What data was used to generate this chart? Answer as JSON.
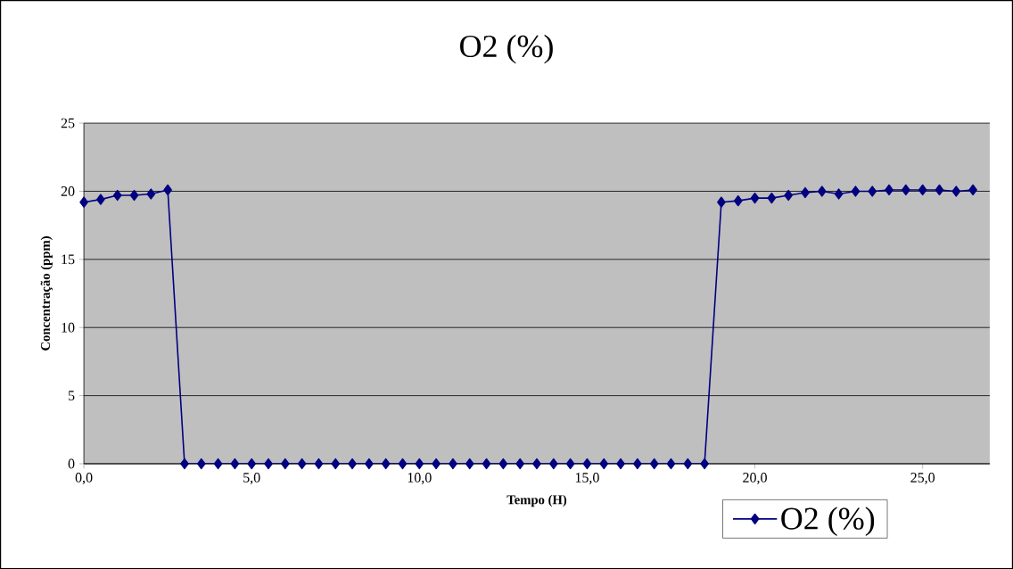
{
  "chart_data": {
    "type": "line",
    "title": "O2 (%)",
    "xlabel": "Tempo (H)",
    "ylabel": "Concentração (ppm)",
    "x": [
      0,
      0.5,
      1.0,
      1.5,
      2.0,
      2.5,
      3.0,
      3.5,
      4.0,
      4.5,
      5.0,
      5.5,
      6.0,
      6.5,
      7.0,
      7.5,
      8.0,
      8.5,
      9.0,
      9.5,
      10.0,
      10.5,
      11.0,
      11.5,
      12.0,
      12.5,
      13.0,
      13.5,
      14.0,
      14.5,
      15.0,
      15.5,
      16.0,
      16.5,
      17.0,
      17.5,
      18.0,
      18.5,
      19.0,
      19.5,
      20.0,
      20.5,
      21.0,
      21.5,
      22.0,
      22.5,
      23.0,
      23.5,
      24.0,
      24.5,
      25.0,
      25.5,
      26.0,
      26.5
    ],
    "series": [
      {
        "name": "O2 (%)",
        "color": "#000080",
        "values": [
          19.2,
          19.4,
          19.7,
          19.7,
          19.8,
          20.1,
          0,
          0,
          0,
          0,
          0,
          0,
          0,
          0,
          0,
          0,
          0,
          0,
          0,
          0,
          0,
          0,
          0,
          0,
          0,
          0,
          0,
          0,
          0,
          0,
          0,
          0,
          0,
          0,
          0,
          0,
          0,
          0,
          19.2,
          19.3,
          19.5,
          19.5,
          19.7,
          19.9,
          20.0,
          19.8,
          20.0,
          20.0,
          20.1,
          20.1,
          20.1,
          20.1,
          20.0,
          20.1
        ]
      }
    ],
    "xlim": [
      0,
      27
    ],
    "ylim": [
      0,
      25
    ],
    "xticks": [
      {
        "value": 0,
        "label": "0,0"
      },
      {
        "value": 5,
        "label": "5,0"
      },
      {
        "value": 10,
        "label": "10,0"
      },
      {
        "value": 15,
        "label": "15,0"
      },
      {
        "value": 20,
        "label": "20,0"
      },
      {
        "value": 25,
        "label": "25,0"
      }
    ],
    "yticks": [
      0,
      5,
      10,
      15,
      20,
      25
    ],
    "grid": "y",
    "legend": "bottom right",
    "marker": "diamond",
    "line_style": "solid"
  }
}
